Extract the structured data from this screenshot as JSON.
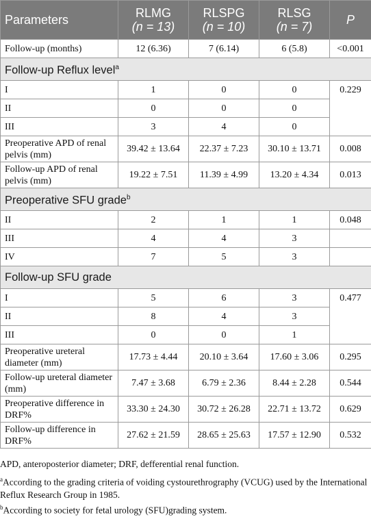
{
  "table": {
    "header": {
      "parameters": "Parameters",
      "groups": [
        {
          "name": "RLMG",
          "n": "(n = 13)"
        },
        {
          "name": "RLSPG",
          "n": "(n = 10)"
        },
        {
          "name": "RLSG",
          "n": "(n = 7)"
        }
      ],
      "p": "P"
    },
    "followup_months": {
      "label": "Follow-up (months)",
      "values": [
        "12 (6.36)",
        "7 (6.14)",
        "6 (5.8)"
      ],
      "p": "<0.001"
    },
    "reflux": {
      "title": "Follow-up Reflux level",
      "sup": "a",
      "rows": [
        {
          "label": "I",
          "values": [
            "1",
            "0",
            "0"
          ]
        },
        {
          "label": "II",
          "values": [
            "0",
            "0",
            "0"
          ]
        },
        {
          "label": "III",
          "values": [
            "3",
            "4",
            "0"
          ]
        }
      ],
      "p": "0.229"
    },
    "pre_apd": {
      "label": "Preoperative APD of renal pelvis (mm)",
      "values": [
        "39.42 ± 13.64",
        "22.37 ± 7.23",
        "30.10 ± 13.71"
      ],
      "p": "0.008"
    },
    "fu_apd": {
      "label": "Follow-up APD of renal pelvis (mm)",
      "values": [
        "19.22 ± 7.51",
        "11.39 ± 4.99",
        "13.20 ± 4.34"
      ],
      "p": "0.013"
    },
    "pre_sfu": {
      "title": "Preoperative SFU grade",
      "sup": "b",
      "rows": [
        {
          "label": "II",
          "values": [
            "2",
            "1",
            "1"
          ],
          "p": "0.048"
        },
        {
          "label": "III",
          "values": [
            "4",
            "4",
            "3"
          ],
          "p": ""
        },
        {
          "label": "IV",
          "values": [
            "7",
            "5",
            "3"
          ],
          "p": ""
        }
      ]
    },
    "fu_sfu": {
      "title": "Follow-up SFU grade",
      "rows": [
        {
          "label": "I",
          "values": [
            "5",
            "6",
            "3"
          ]
        },
        {
          "label": "II",
          "values": [
            "8",
            "4",
            "3"
          ]
        },
        {
          "label": "III",
          "values": [
            "0",
            "0",
            "1"
          ]
        }
      ],
      "p": "0.477"
    },
    "pre_ureter": {
      "label": "Preoperative ureteral diameter (mm)",
      "values": [
        "17.73 ± 4.44",
        "20.10 ± 3.64",
        "17.60 ± 3.06"
      ],
      "p": "0.295"
    },
    "fu_ureter": {
      "label": "Follow-up ureteral diameter (mm)",
      "values": [
        "7.47 ± 3.68",
        "6.79 ± 2.36",
        "8.44 ± 2.28"
      ],
      "p": "0.544"
    },
    "pre_drf": {
      "label": "Preoperative difference in DRF%",
      "values": [
        "33.30 ± 24.30",
        "30.72 ± 26.28",
        "22.71 ± 13.72"
      ],
      "p": "0.629"
    },
    "fu_drf": {
      "label": "Follow-up difference in DRF%",
      "values": [
        "27.62 ± 21.59",
        "28.65 ± 25.63",
        "17.57 ± 12.90"
      ],
      "p": "0.532"
    }
  },
  "notes": {
    "abbrev": "APD, anteroposterior diameter; DRF, defferential renal function.",
    "a_mark": "a",
    "a_text": "According to the grading criteria of voiding cystourethrography (VCUG) used by the International Reflux Research Group in 1985.",
    "b_mark": "b",
    "b_text": "According to society for fetal urology (SFU)grading system."
  }
}
